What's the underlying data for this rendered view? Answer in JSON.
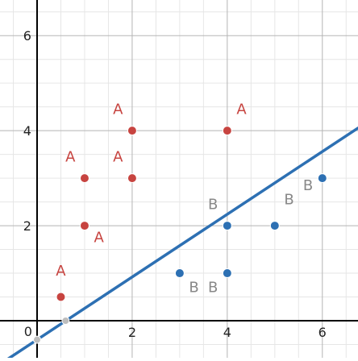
{
  "chart_data": {
    "type": "scatter",
    "title": "",
    "xlabel": "",
    "ylabel": "",
    "xlim": [
      -0.78,
      6.75
    ],
    "ylim": [
      -0.78,
      6.75
    ],
    "grid": true,
    "minor_step": 0.5,
    "major_step": 2,
    "x_ticks": [
      0,
      2,
      4,
      6
    ],
    "x_tick_labels": [
      "0",
      "2",
      "4",
      "6"
    ],
    "y_ticks": [
      2,
      4,
      6
    ],
    "y_tick_labels": [
      "2",
      "4",
      "6"
    ],
    "series": [
      {
        "name": "A",
        "color": "#c74440",
        "points": [
          {
            "x": 0.5,
            "y": 0.5
          },
          {
            "x": 1,
            "y": 2
          },
          {
            "x": 1,
            "y": 3
          },
          {
            "x": 2,
            "y": 3
          },
          {
            "x": 2,
            "y": 4
          },
          {
            "x": 4,
            "y": 4
          }
        ]
      },
      {
        "name": "B",
        "color": "#2d70b3",
        "points": [
          {
            "x": 3,
            "y": 1
          },
          {
            "x": 4,
            "y": 1
          },
          {
            "x": 4,
            "y": 2
          },
          {
            "x": 5,
            "y": 2
          },
          {
            "x": 6,
            "y": 3
          }
        ]
      }
    ],
    "line": {
      "slope": 0.66,
      "intercept": -0.4,
      "x_range": [
        -0.78,
        6.75
      ],
      "color": "#2d70b3"
    },
    "intercept_points": [
      {
        "x": 0,
        "y": -0.4
      },
      {
        "x": 0.6,
        "y": 0
      }
    ],
    "point_labels": [
      {
        "text": "A",
        "x": 0.5,
        "y": 0.95,
        "color": "#c74440"
      },
      {
        "text": "A",
        "x": 1.3,
        "y": 1.65,
        "color": "#c74440"
      },
      {
        "text": "A",
        "x": 0.7,
        "y": 3.35,
        "color": "#c74440"
      },
      {
        "text": "A",
        "x": 1.7,
        "y": 3.35,
        "color": "#c74440"
      },
      {
        "text": "A",
        "x": 1.7,
        "y": 4.35,
        "color": "#c74440"
      },
      {
        "text": "A",
        "x": 4.3,
        "y": 4.35,
        "color": "#c74440"
      },
      {
        "text": "B",
        "x": 3.3,
        "y": 0.6,
        "color": "#888888"
      },
      {
        "text": "B",
        "x": 3.7,
        "y": 0.6,
        "color": "#888888"
      },
      {
        "text": "B",
        "x": 3.7,
        "y": 2.35,
        "color": "#888888"
      },
      {
        "text": "B",
        "x": 5.3,
        "y": 2.45,
        "color": "#888888"
      },
      {
        "text": "B",
        "x": 5.7,
        "y": 2.75,
        "color": "#888888"
      }
    ]
  }
}
